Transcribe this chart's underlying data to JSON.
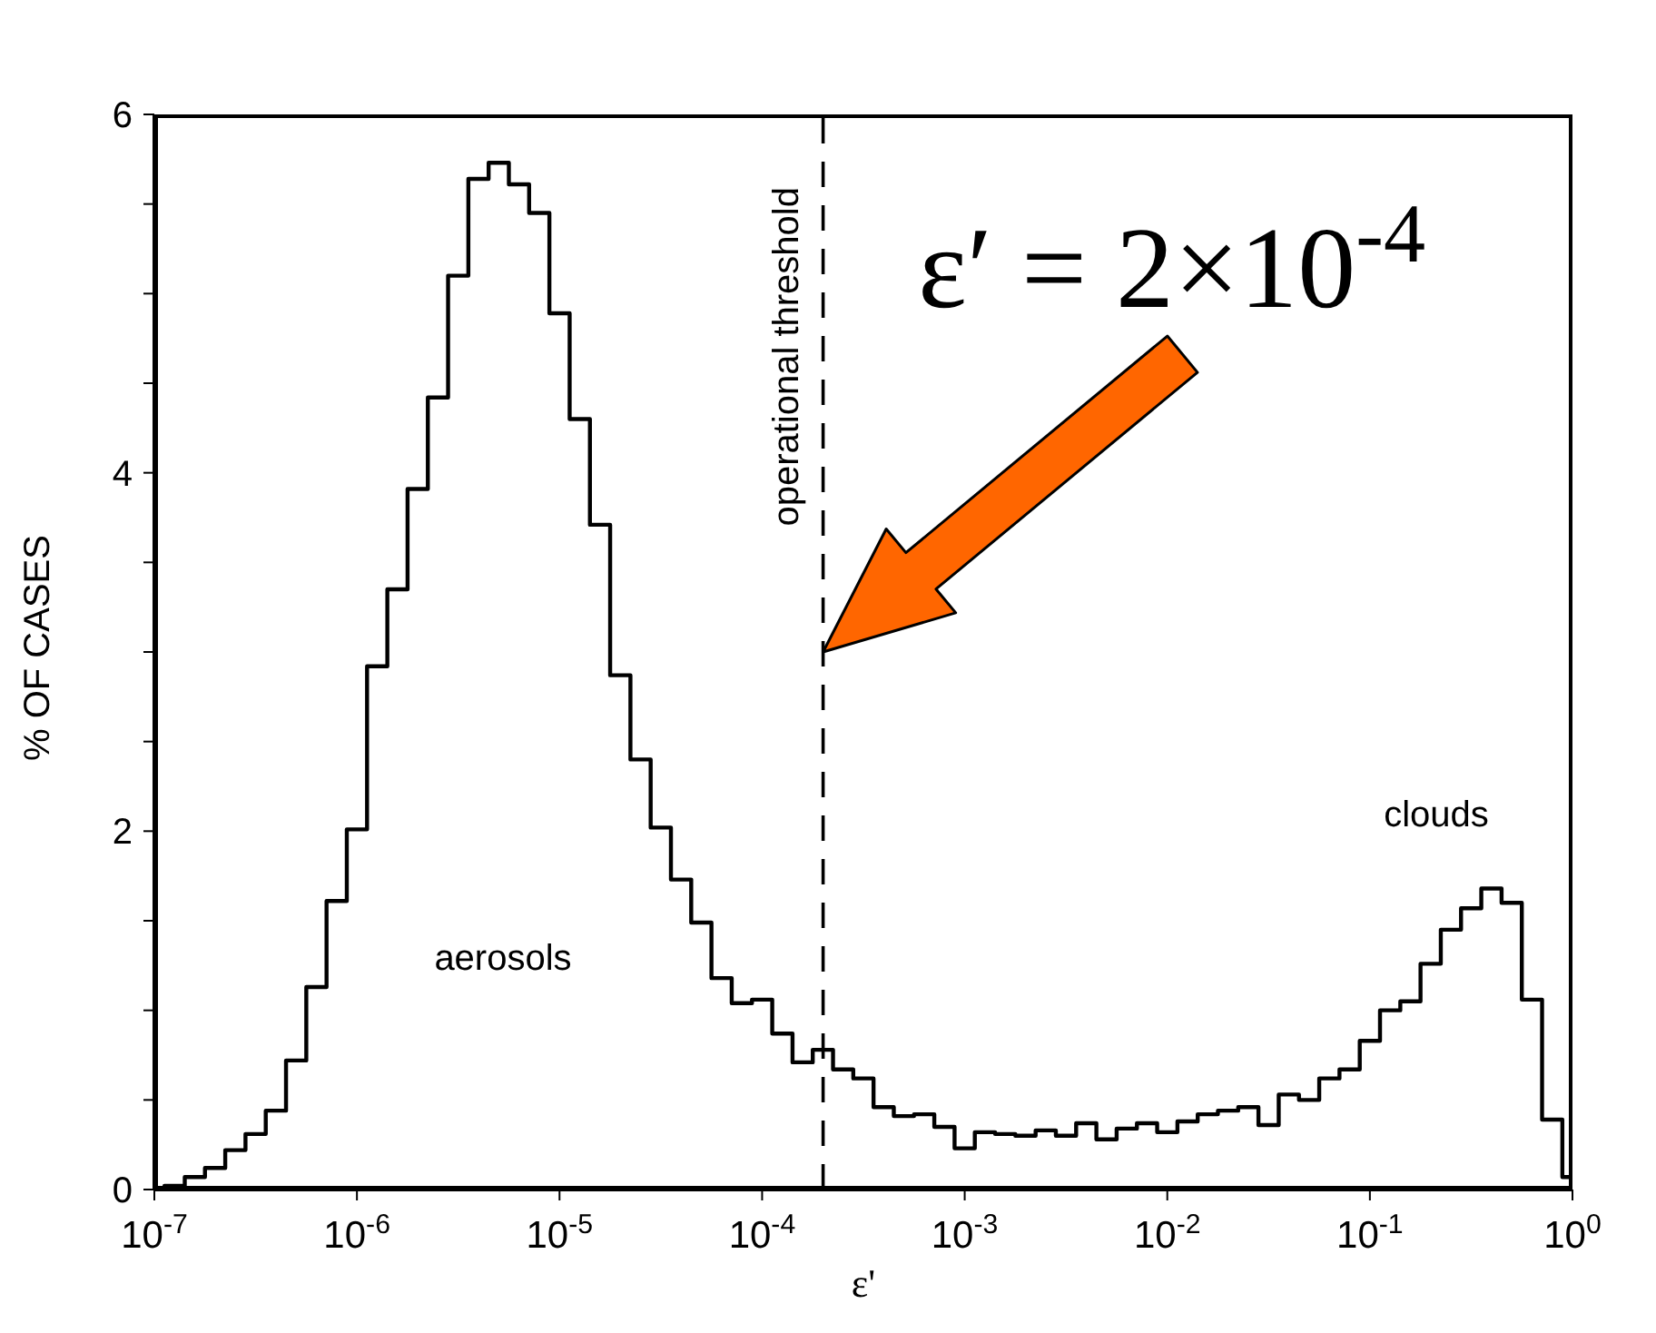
{
  "chart_data": {
    "type": "histogram",
    "xlabel": "ε'",
    "ylabel": "% OF CASES",
    "log": "x",
    "xlim": [
      1e-07,
      1
    ],
    "xticks": [
      {
        "value": 1e-07,
        "label": "10$^{-7}$"
      },
      {
        "value": 1e-06,
        "label": "10$^{-6}$"
      },
      {
        "value": 1e-05,
        "label": "10$^{-5}$"
      },
      {
        "value": 0.0001,
        "label": "10$^{-4}$"
      },
      {
        "value": 0.001,
        "label": "10$^{-3}$"
      },
      {
        "value": 0.01,
        "label": "10$^{-2}$"
      },
      {
        "value": 0.1,
        "label": "10$^{-1}$"
      },
      {
        "value": 1,
        "label": "10$^{0}$"
      }
    ],
    "ylim": [
      0,
      6
    ],
    "yticks": [
      0,
      {
        "value": 0.5,
        "label": null
      },
      {
        "value": 1,
        "label": null
      },
      {
        "value": 1.5,
        "label": null
      },
      2,
      {
        "value": 2.5,
        "label": null
      },
      {
        "value": 3,
        "label": null
      },
      {
        "value": 3.5,
        "label": null
      },
      4,
      {
        "value": 4.5,
        "label": null
      },
      {
        "value": 5,
        "label": null
      },
      {
        "value": 5.5,
        "label": null
      },
      6
    ],
    "bins": [
      1.122e-07,
      1.413e-07,
      1.778e-07,
      2.239e-07,
      2.818e-07,
      3.548e-07,
      4.467e-07,
      5.623e-07,
      7.079e-07,
      8.913e-07,
      1.122e-06,
      1.413e-06,
      1.778e-06,
      2.239e-06,
      2.818e-06,
      3.548e-06,
      4.467e-06,
      5.623e-06,
      7.079e-06,
      8.913e-06,
      1.122e-05,
      1.413e-05,
      1.778e-05,
      2.239e-05,
      2.818e-05,
      3.548e-05,
      4.467e-05,
      5.623e-05,
      7.079e-05,
      8.913e-05,
      0.0001122,
      0.0001413,
      0.0001778,
      0.0002239,
      0.0002818,
      0.0003548,
      0.0004467,
      0.0005623,
      0.0007079,
      0.0008913,
      0.001122,
      0.001413,
      0.001778,
      0.002239,
      0.002818,
      0.003548,
      0.004467,
      0.005623,
      0.007079,
      0.008913,
      0.01122,
      0.01413,
      0.01778,
      0.02239,
      0.02818,
      0.03548,
      0.04467,
      0.05623,
      0.07079,
      0.08913,
      0.1122,
      0.1413,
      0.1778,
      0.2239,
      0.2818,
      0.3548,
      0.4467,
      0.5623,
      0.7079,
      0.8913,
      1
    ],
    "values": [
      0.02,
      0.07,
      0.12,
      0.22,
      0.31,
      0.44,
      0.72,
      1.13,
      1.61,
      2.01,
      2.92,
      3.35,
      3.91,
      4.42,
      5.1,
      5.64,
      5.73,
      5.61,
      5.45,
      4.89,
      4.3,
      3.71,
      2.87,
      2.4,
      2.02,
      1.73,
      1.49,
      1.18,
      1.04,
      1.06,
      0.87,
      0.71,
      0.78,
      0.67,
      0.62,
      0.46,
      0.41,
      0.42,
      0.35,
      0.23,
      0.32,
      0.31,
      0.3,
      0.33,
      0.3,
      0.37,
      0.28,
      0.34,
      0.37,
      0.32,
      0.38,
      0.42,
      0.44,
      0.46,
      0.36,
      0.53,
      0.5,
      0.62,
      0.67,
      0.83,
      1.0,
      1.05,
      1.26,
      1.45,
      1.57,
      1.68,
      1.6,
      1.06,
      0.39,
      0.07
    ],
    "color": "#000000",
    "ref_lines": [
      {
        "axis": "x",
        "value": 0.0002,
        "label": "operational threshold",
        "line_style": "dashed",
        "color": "#000000"
      }
    ],
    "annotations": [
      "aerosols",
      "clouds",
      {
        "text": "ε′ = 2×10$^{-4}$",
        "x": 0.0002,
        "y": 3
      }
    ]
  }
}
